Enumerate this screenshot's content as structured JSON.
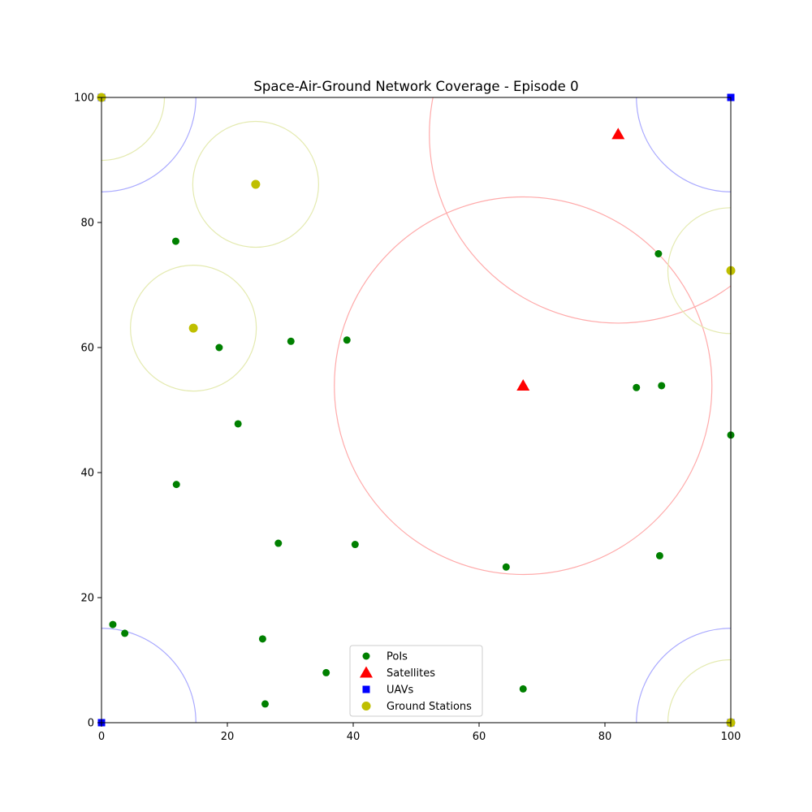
{
  "chart_data": {
    "type": "scatter",
    "title": "Space-Air-Ground Network Coverage - Episode 0",
    "xlabel": "",
    "ylabel": "",
    "xlim": [
      0,
      100
    ],
    "ylim": [
      0,
      100
    ],
    "xticks": [
      0,
      20,
      40,
      60,
      80,
      100
    ],
    "yticks": [
      0,
      20,
      40,
      60,
      80,
      100
    ],
    "grid": false,
    "legend_position": "bottom-center",
    "colors": {
      "pois": "#008000",
      "satellites": "#ff0000",
      "uavs": "#0000ff",
      "ground_stations": "#bfbf00",
      "satellite_coverage": "#ffaaaa",
      "uav_coverage": "#aaaaff",
      "ground_station_coverage": "#e4eab0"
    },
    "series": [
      {
        "name": "PoIs",
        "marker": "circle",
        "points": [
          [
            11.8,
            77.0
          ],
          [
            18.7,
            60.0
          ],
          [
            30.1,
            61.0
          ],
          [
            39.0,
            61.2
          ],
          [
            21.7,
            47.8
          ],
          [
            11.9,
            38.1
          ],
          [
            28.1,
            28.7
          ],
          [
            40.3,
            28.5
          ],
          [
            64.3,
            24.9
          ],
          [
            1.8,
            15.7
          ],
          [
            3.7,
            14.3
          ],
          [
            25.6,
            13.4
          ],
          [
            35.7,
            8.0
          ],
          [
            26.0,
            3.0
          ],
          [
            67.0,
            5.4
          ],
          [
            88.5,
            75.0
          ],
          [
            85.0,
            53.6
          ],
          [
            89.0,
            53.9
          ],
          [
            100.0,
            46.0
          ],
          [
            88.7,
            26.7
          ]
        ]
      },
      {
        "name": "Satellites",
        "marker": "triangle",
        "points": [
          [
            82.1,
            94.1
          ],
          [
            67.0,
            53.9
          ]
        ],
        "coverage_radius": 30
      },
      {
        "name": "UAVs",
        "marker": "square",
        "points": [
          [
            0.0,
            100.0
          ],
          [
            100.0,
            100.0
          ],
          [
            0.0,
            0.0
          ],
          [
            100.0,
            0.0
          ]
        ],
        "coverage_radius": 15
      },
      {
        "name": "Ground Stations",
        "marker": "circle",
        "points": [
          [
            24.5,
            86.1
          ],
          [
            14.6,
            63.1
          ],
          [
            100.0,
            72.3
          ],
          [
            0.0,
            100.0
          ],
          [
            100.0,
            0.0
          ]
        ],
        "coverage_radius": 10
      }
    ],
    "legend": [
      "PoIs",
      "Satellites",
      "UAVs",
      "Ground Stations"
    ]
  }
}
